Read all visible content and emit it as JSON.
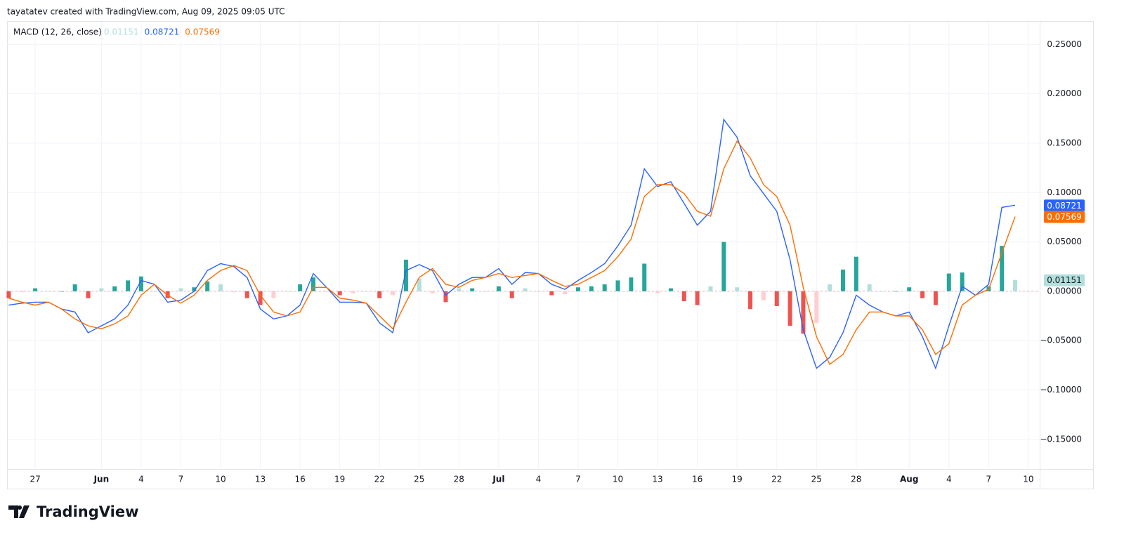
{
  "header": "tayatatev created with TradingView.com, Aug 09, 2025 09:05 UTC",
  "footer_logo": "TradingView",
  "chart_data": {
    "type": "macd",
    "legend_title": "MACD (12, 26, close)",
    "categories": [
      null,
      null,
      "27",
      null,
      null,
      null,
      null,
      "Jun",
      null,
      null,
      "4",
      null,
      null,
      "7",
      null,
      null,
      "10",
      null,
      null,
      "13",
      null,
      null,
      "16",
      null,
      null,
      "19",
      null,
      null,
      "22",
      null,
      null,
      "25",
      null,
      null,
      "28",
      null,
      null,
      "Jul",
      null,
      null,
      "4",
      null,
      null,
      "7",
      null,
      null,
      "10",
      null,
      null,
      "13",
      null,
      null,
      "16",
      null,
      null,
      "19",
      null,
      null,
      "22",
      null,
      null,
      "25",
      null,
      null,
      "28",
      null,
      null,
      null,
      "Aug",
      null,
      null,
      "4",
      null,
      null,
      "7",
      null,
      null,
      "10"
    ],
    "bold_categories": [
      "Jun",
      "Jul",
      "Aug"
    ],
    "series": [
      {
        "kind": "histogram",
        "colors": {
          "up_grow": "#26a69a",
          "up_fall": "#b2dfdb",
          "down_grow": "#ef5350",
          "down_fall": "#ffcdd2"
        },
        "values": [
          -0.007,
          -0.001,
          0.003,
          0,
          0,
          0.007,
          -0.007,
          0.003,
          0.005,
          0.011,
          0.015,
          0,
          -0.007,
          0.003,
          0.004,
          0.01,
          0.007,
          -0.001,
          -0.007,
          -0.014,
          -0.007,
          0,
          0.007,
          0.014,
          0,
          -0.004,
          -0.002,
          0,
          -0.007,
          -0.004,
          0.032,
          0.013,
          -0.002,
          -0.011,
          0.003,
          0.003,
          0,
          0.005,
          -0.007,
          0.003,
          0,
          -0.004,
          -0.003,
          0.004,
          0.005,
          0.007,
          0.011,
          0.014,
          0.028,
          -0.002,
          0.003,
          -0.01,
          -0.014,
          0.005,
          0.05,
          0.004,
          -0.018,
          -0.009,
          -0.015,
          -0.035,
          -0.043,
          -0.032,
          0.007,
          0.022,
          0.035,
          0.007,
          0,
          0,
          0.004,
          -0.007,
          -0.014,
          0.018,
          0.019,
          0,
          0.005,
          0.046,
          0.01151,
          null
        ],
        "value_labels_color": "#b2dfdb"
      },
      {
        "kind": "line",
        "color": "#2962ff",
        "values": [
          -0.014,
          -0.012,
          -0.011,
          -0.011,
          -0.018,
          -0.021,
          -0.042,
          -0.035,
          -0.028,
          -0.014,
          0.011,
          0.007,
          -0.011,
          -0.009,
          0,
          0.021,
          0.028,
          0.025,
          0.014,
          -0.018,
          -0.028,
          -0.025,
          -0.014,
          0.018,
          0.004,
          -0.011,
          -0.011,
          -0.012,
          -0.032,
          -0.042,
          0.021,
          0.027,
          0.021,
          -0.004,
          0.007,
          0.014,
          0.014,
          0.023,
          0.007,
          0.019,
          0.018,
          0.007,
          0.002,
          0.011,
          0.019,
          0.028,
          0.046,
          0.067,
          0.124,
          0.106,
          0.111,
          0.089,
          0.067,
          0.081,
          0.174,
          0.156,
          0.117,
          0.099,
          0.081,
          0.032,
          -0.039,
          -0.078,
          -0.067,
          -0.042,
          -0.004,
          -0.014,
          -0.021,
          -0.025,
          -0.021,
          -0.046,
          -0.078,
          -0.035,
          0.005,
          -0.004,
          0.007,
          0.085,
          0.08721,
          null
        ]
      },
      {
        "kind": "line",
        "color": "#ff6d00",
        "values": [
          -0.007,
          -0.011,
          -0.014,
          -0.011,
          -0.018,
          -0.028,
          -0.035,
          -0.038,
          -0.033,
          -0.025,
          -0.004,
          0.007,
          -0.004,
          -0.012,
          -0.004,
          0.011,
          0.021,
          0.026,
          0.021,
          -0.004,
          -0.021,
          -0.025,
          -0.021,
          0.004,
          0.004,
          -0.007,
          -0.009,
          -0.012,
          -0.025,
          -0.038,
          -0.011,
          0.014,
          0.023,
          0.007,
          0.004,
          0.011,
          0.014,
          0.018,
          0.014,
          0.016,
          0.018,
          0.011,
          0.005,
          0.007,
          0.014,
          0.021,
          0.035,
          0.053,
          0.096,
          0.108,
          0.108,
          0.099,
          0.081,
          0.076,
          0.124,
          0.152,
          0.135,
          0.108,
          0.096,
          0.067,
          0.004,
          -0.046,
          -0.074,
          -0.064,
          -0.039,
          -0.021,
          -0.021,
          -0.025,
          -0.025,
          -0.039,
          -0.064,
          -0.053,
          -0.014,
          -0.004,
          0.002,
          0.039,
          0.07569,
          null
        ]
      }
    ],
    "ylim": [
      -0.18,
      0.273
    ],
    "yticks": [
      {
        "value": 0.25,
        "label": "0.25000"
      },
      {
        "value": 0.2,
        "label": "0.20000"
      },
      {
        "value": 0.15,
        "label": "0.15000"
      },
      {
        "value": 0.1,
        "label": "0.10000"
      },
      {
        "value": 0.05,
        "label": "0.05000"
      },
      {
        "value": 0,
        "label": "0.00000"
      },
      {
        "value": -0.05,
        "label": "−0.05000"
      },
      {
        "value": -0.1,
        "label": "−0.10000"
      },
      {
        "value": -0.15,
        "label": "−0.15000"
      }
    ],
    "grid": true
  }
}
